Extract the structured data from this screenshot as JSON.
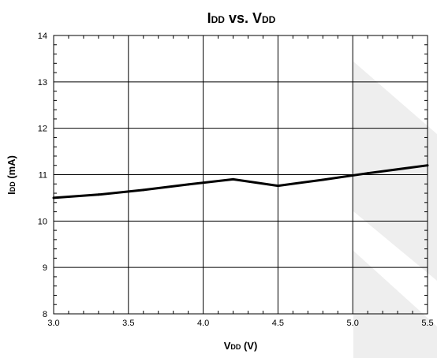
{
  "chart_data": {
    "type": "line",
    "title": {
      "main": "I",
      "sub": "DD",
      "mid": " vs. V",
      "sub2": "DD"
    },
    "xlabel": {
      "main": "V",
      "sub": "DD",
      "rest": " (V)"
    },
    "ylabel": {
      "main": "I",
      "sub": "DD",
      "rest": " (mA)"
    },
    "xlim": [
      3.0,
      5.5
    ],
    "ylim": [
      8,
      14
    ],
    "x_ticks": [
      "3.0",
      "3.5",
      "4.0",
      "4.5",
      "5.0",
      "5.5"
    ],
    "y_ticks": [
      "8",
      "9",
      "10",
      "11",
      "12",
      "13",
      "14"
    ],
    "grid": true,
    "line_color": "#000000",
    "series": [
      {
        "x": [
          3.0,
          3.3,
          3.6,
          3.9,
          4.2,
          4.5,
          4.8,
          5.1,
          5.5
        ],
        "y": [
          10.5,
          10.57,
          10.67,
          10.79,
          10.9,
          10.76,
          10.89,
          11.03,
          11.2
        ]
      }
    ]
  }
}
